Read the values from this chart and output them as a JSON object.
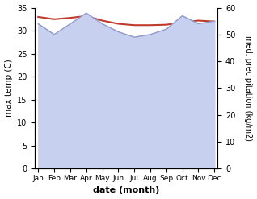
{
  "months": [
    "Jan",
    "Feb",
    "Mar",
    "Apr",
    "May",
    "Jun",
    "Jul",
    "Aug",
    "Sep",
    "Oct",
    "Nov",
    "Dec"
  ],
  "month_indices": [
    0,
    1,
    2,
    3,
    4,
    5,
    6,
    7,
    8,
    9,
    10,
    11
  ],
  "max_temp": [
    33.0,
    32.5,
    32.8,
    33.2,
    32.2,
    31.5,
    31.2,
    31.2,
    31.3,
    31.8,
    32.2,
    32.0
  ],
  "precipitation": [
    54,
    50,
    54,
    58,
    54,
    51,
    49,
    50,
    52,
    57,
    54,
    55
  ],
  "temp_color": "#c0392b",
  "precip_fill_color": "#c8d0f0",
  "precip_line_color": "#9099cc",
  "temp_ylim": [
    0,
    35
  ],
  "precip_ylim": [
    0,
    60
  ],
  "temp_yticks": [
    0,
    5,
    10,
    15,
    20,
    25,
    30,
    35
  ],
  "precip_yticks": [
    0,
    10,
    20,
    30,
    40,
    50,
    60
  ],
  "xlabel": "date (month)",
  "ylabel_left": "max temp (C)",
  "ylabel_right": "med. precipitation (kg/m2)",
  "bg_color": "#ffffff"
}
